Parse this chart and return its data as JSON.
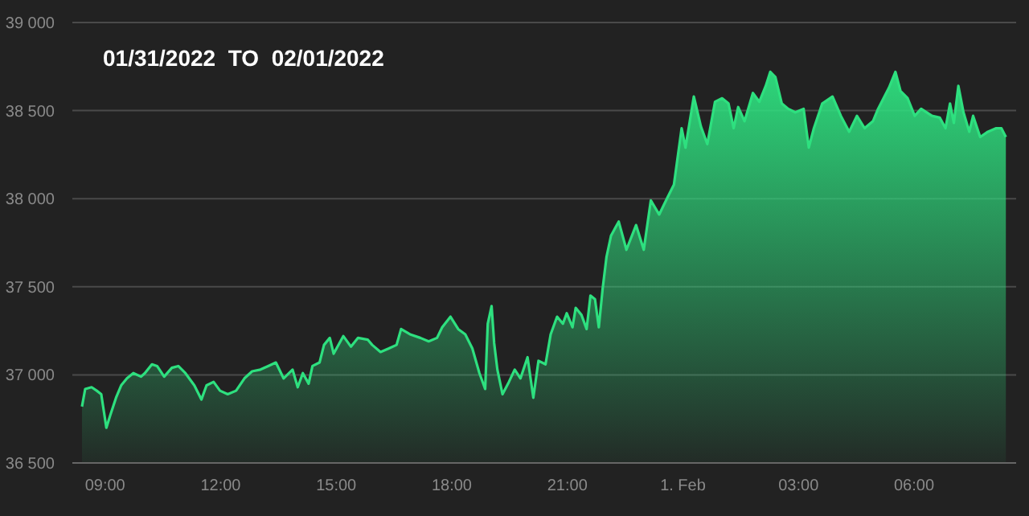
{
  "chart_data": {
    "type": "area",
    "title": "01/31/2022  TO  02/01/2022",
    "x": [
      "2022-01-31T08:24",
      "2022-01-31T08:29",
      "2022-01-31T08:39",
      "2022-01-31T08:47",
      "2022-01-31T08:54",
      "2022-01-31T09:02",
      "2022-01-31T09:08",
      "2022-01-31T09:17",
      "2022-01-31T09:25",
      "2022-01-31T09:34",
      "2022-01-31T09:44",
      "2022-01-31T09:56",
      "2022-01-31T10:02",
      "2022-01-31T10:13",
      "2022-01-31T10:21",
      "2022-01-31T10:32",
      "2022-01-31T10:44",
      "2022-01-31T10:54",
      "2022-01-31T11:05",
      "2022-01-31T11:19",
      "2022-01-31T11:30",
      "2022-01-31T11:38",
      "2022-01-31T11:49",
      "2022-01-31T11:59",
      "2022-01-31T12:11",
      "2022-01-31T12:24",
      "2022-01-31T12:37",
      "2022-01-31T12:49",
      "2022-01-31T13:02",
      "2022-01-31T13:14",
      "2022-01-31T13:26",
      "2022-01-31T13:38",
      "2022-01-31T13:52",
      "2022-01-31T14:00",
      "2022-01-31T14:08",
      "2022-01-31T14:17",
      "2022-01-31T14:23",
      "2022-01-31T14:34",
      "2022-01-31T14:41",
      "2022-01-31T14:50",
      "2022-01-31T14:56",
      "2022-01-31T15:11",
      "2022-01-31T15:23",
      "2022-01-31T15:34",
      "2022-01-31T15:49",
      "2022-01-31T15:56",
      "2022-01-31T16:09",
      "2022-01-31T16:22",
      "2022-01-31T16:34",
      "2022-01-31T16:41",
      "2022-01-31T16:55",
      "2022-01-31T17:11",
      "2022-01-31T17:24",
      "2022-01-31T17:37",
      "2022-01-31T17:45",
      "2022-01-31T17:58",
      "2022-01-31T18:10",
      "2022-01-31T18:21",
      "2022-01-31T18:32",
      "2022-01-31T18:43",
      "2022-01-31T18:52",
      "2022-01-31T18:56",
      "2022-01-31T19:02",
      "2022-01-31T19:06",
      "2022-01-31T19:11",
      "2022-01-31T19:19",
      "2022-01-31T19:29",
      "2022-01-31T19:38",
      "2022-01-31T19:47",
      "2022-01-31T19:58",
      "2022-01-31T20:07",
      "2022-01-31T20:15",
      "2022-01-31T20:26",
      "2022-01-31T20:34",
      "2022-01-31T20:44",
      "2022-01-31T20:53",
      "2022-01-31T20:59",
      "2022-01-31T21:08",
      "2022-01-31T21:13",
      "2022-01-31T21:22",
      "2022-01-31T21:30",
      "2022-01-31T21:36",
      "2022-01-31T21:43",
      "2022-01-31T21:49",
      "2022-01-31T21:55",
      "2022-01-31T22:01",
      "2022-01-31T22:08",
      "2022-01-31T22:20",
      "2022-01-31T22:32",
      "2022-01-31T22:47",
      "2022-01-31T22:59",
      "2022-01-31T23:10",
      "2022-01-31T23:23",
      "2022-01-31T23:35",
      "2022-01-31T23:46",
      "2022-01-31T23:58",
      "2022-02-01T00:04",
      "2022-02-01T00:17",
      "2022-02-01T00:28",
      "2022-02-01T00:38",
      "2022-02-01T00:50",
      "2022-02-01T01:01",
      "2022-02-01T01:11",
      "2022-02-01T01:19",
      "2022-02-01T01:26",
      "2022-02-01T01:36",
      "2022-02-01T01:49",
      "2022-02-01T01:59",
      "2022-02-01T02:09",
      "2022-02-01T02:16",
      "2022-02-01T02:24",
      "2022-02-01T02:34",
      "2022-02-01T02:44",
      "2022-02-01T02:55",
      "2022-02-01T03:08",
      "2022-02-01T03:16",
      "2022-02-01T03:24",
      "2022-02-01T03:37",
      "2022-02-01T03:53",
      "2022-02-01T04:06",
      "2022-02-01T04:19",
      "2022-02-01T04:31",
      "2022-02-01T04:43",
      "2022-02-01T04:56",
      "2022-02-01T05:04",
      "2022-02-01T05:21",
      "2022-02-01T05:31",
      "2022-02-01T05:39",
      "2022-02-01T05:50",
      "2022-02-01T06:01",
      "2022-02-01T06:11",
      "2022-02-01T06:28",
      "2022-02-01T06:40",
      "2022-02-01T06:49",
      "2022-02-01T06:56",
      "2022-02-01T07:02",
      "2022-02-01T07:09",
      "2022-02-01T07:17",
      "2022-02-01T07:26",
      "2022-02-01T07:32",
      "2022-02-01T07:43",
      "2022-02-01T07:55",
      "2022-02-01T08:08",
      "2022-02-01T08:16",
      "2022-02-01T08:23"
    ],
    "series": [
      {
        "color": "#2ee07f",
        "values": [
          36820,
          36920,
          36930,
          36910,
          36890,
          36700,
          36770,
          36870,
          36940,
          36980,
          37010,
          36990,
          37010,
          37060,
          37050,
          36990,
          37040,
          37050,
          37010,
          36940,
          36860,
          36940,
          36960,
          36910,
          36890,
          36910,
          36980,
          37020,
          37030,
          37050,
          37070,
          36980,
          37030,
          36930,
          37010,
          36950,
          37050,
          37070,
          37170,
          37210,
          37120,
          37220,
          37160,
          37210,
          37200,
          37170,
          37130,
          37150,
          37170,
          37260,
          37230,
          37210,
          37190,
          37210,
          37270,
          37330,
          37260,
          37230,
          37150,
          37010,
          36920,
          37290,
          37390,
          37180,
          37030,
          36890,
          36960,
          37030,
          36980,
          37100,
          36870,
          37080,
          37060,
          37230,
          37330,
          37290,
          37350,
          37270,
          37380,
          37340,
          37260,
          37450,
          37430,
          37270,
          37490,
          37670,
          37790,
          37870,
          37710,
          37850,
          37710,
          37990,
          37910,
          38000,
          38080,
          38400,
          38290,
          38580,
          38410,
          38310,
          38550,
          38570,
          38540,
          38400,
          38520,
          38440,
          38600,
          38550,
          38640,
          38720,
          38690,
          38540,
          38510,
          38490,
          38510,
          38290,
          38400,
          38540,
          38580,
          38470,
          38380,
          38470,
          38400,
          38440,
          38510,
          38630,
          38720,
          38610,
          38570,
          38470,
          38510,
          38470,
          38460,
          38400,
          38540,
          38430,
          38640,
          38490,
          38380,
          38470,
          38350,
          38380,
          38400,
          38400,
          38350
        ]
      }
    ],
    "xlim": [
      "2022-01-31T08:09",
      "2022-02-01T08:39"
    ],
    "xticks": [
      {
        "value": "2022-01-31T09:00",
        "label": "09:00"
      },
      {
        "value": "2022-01-31T12:00",
        "label": "12:00"
      },
      {
        "value": "2022-01-31T15:00",
        "label": "15:00"
      },
      {
        "value": "2022-01-31T18:00",
        "label": "18:00"
      },
      {
        "value": "2022-01-31T21:00",
        "label": "21:00"
      },
      {
        "value": "2022-02-01",
        "label": "1. Feb"
      },
      {
        "value": "2022-02-01T03:00",
        "label": "03:00"
      },
      {
        "value": "2022-02-01T06:00",
        "label": "06:00"
      }
    ],
    "ylim": [
      36500,
      39000
    ],
    "yticks": [
      {
        "value": 36500,
        "label": "36 500"
      },
      {
        "value": 37000,
        "label": "37 000"
      },
      {
        "value": 37500,
        "label": "37 500"
      },
      {
        "value": 38000,
        "label": "38 000"
      },
      {
        "value": 38500,
        "label": "38 500"
      },
      {
        "value": 39000,
        "label": "39 000"
      }
    ],
    "grid": "y"
  }
}
